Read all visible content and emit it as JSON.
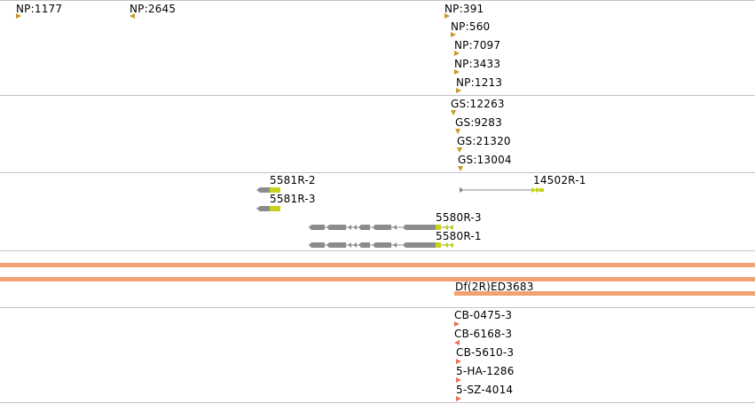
{
  "tracks": {
    "np_insertions": [
      {
        "label": "NP:1177"
      },
      {
        "label": "NP:2645"
      },
      {
        "label": "NP:391"
      },
      {
        "label": "NP:560"
      },
      {
        "label": "NP:7097"
      },
      {
        "label": "NP:3433"
      },
      {
        "label": "NP:1213"
      }
    ],
    "gs_insertions": [
      {
        "label": "GS:12263"
      },
      {
        "label": "GS:9283"
      },
      {
        "label": "GS:21320"
      },
      {
        "label": "GS:13004"
      }
    ],
    "transcripts": [
      {
        "label": "5581R-2"
      },
      {
        "label": "5581R-3"
      },
      {
        "label": "14502R-1"
      },
      {
        "label": "5580R-3"
      },
      {
        "label": "5580R-1"
      }
    ],
    "deficiencies": [
      {
        "label": "Df(2R)ED3683"
      }
    ],
    "cb_insertions": [
      {
        "label": "CB-0475-3"
      },
      {
        "label": "CB-6168-3"
      },
      {
        "label": "CB-5610-3"
      },
      {
        "label": "5-HA-1286"
      },
      {
        "label": "5-SZ-4014"
      }
    ]
  },
  "colors": {
    "insertion_marker": "#c49a1e",
    "cb_marker": "#e8705a",
    "deficiency_bar": "#f2a272",
    "gene_body": "#8c8c8c",
    "utr": "#c8d21e",
    "separator": "#c4c4c4"
  }
}
